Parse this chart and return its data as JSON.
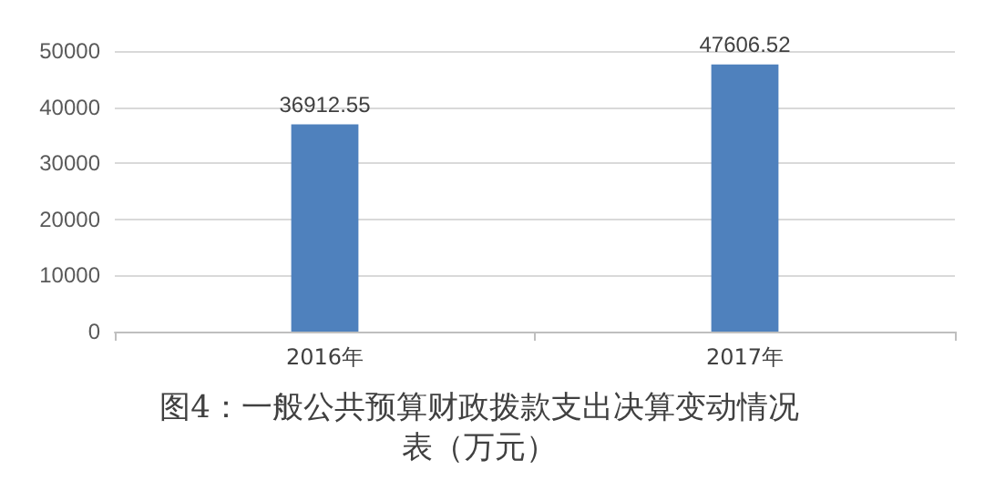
{
  "chart_data": {
    "type": "bar",
    "title": "图4：一般公共预算财政拨款支出决算变动情况表（万元）",
    "categories": [
      "2016年",
      "2017年"
    ],
    "values": [
      36912.55,
      47606.52
    ],
    "color": "#4f81bd",
    "ylim": [
      0,
      50000
    ],
    "yticks": [
      0,
      10000,
      20000,
      30000,
      40000,
      50000
    ],
    "grid": "y",
    "data_labels": true
  }
}
